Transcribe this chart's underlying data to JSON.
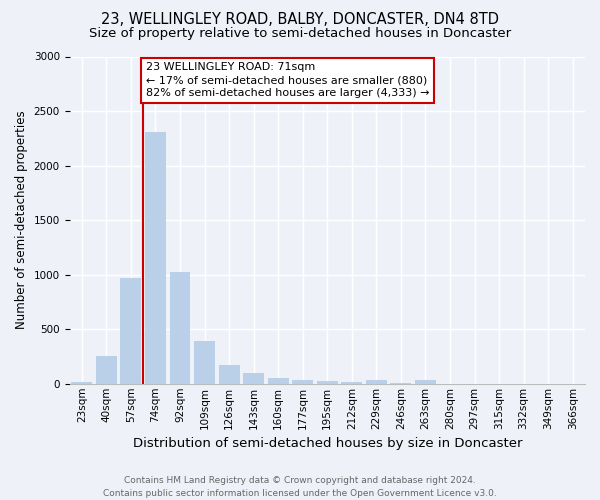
{
  "title": "23, WELLINGLEY ROAD, BALBY, DONCASTER, DN4 8TD",
  "subtitle": "Size of property relative to semi-detached houses in Doncaster",
  "xlabel": "Distribution of semi-detached houses by size in Doncaster",
  "ylabel": "Number of semi-detached properties",
  "categories": [
    "23sqm",
    "40sqm",
    "57sqm",
    "74sqm",
    "92sqm",
    "109sqm",
    "126sqm",
    "143sqm",
    "160sqm",
    "177sqm",
    "195sqm",
    "212sqm",
    "229sqm",
    "246sqm",
    "263sqm",
    "280sqm",
    "297sqm",
    "315sqm",
    "332sqm",
    "349sqm",
    "366sqm"
  ],
  "values": [
    15,
    250,
    970,
    2310,
    1020,
    390,
    175,
    100,
    55,
    35,
    25,
    15,
    30,
    8,
    35,
    0,
    0,
    0,
    0,
    0,
    0
  ],
  "bar_color": "#bad0e8",
  "vline_color": "#cc0000",
  "background_color": "#eef2f8",
  "grid_color": "#ffffff",
  "footer": "Contains HM Land Registry data © Crown copyright and database right 2024.\nContains public sector information licensed under the Open Government Licence v3.0.",
  "ylim": [
    0,
    3000
  ],
  "property_label": "23 WELLINGLEY ROAD: 71sqm",
  "annotation_line1": "← 17% of semi-detached houses are smaller (880)",
  "annotation_line2": "82% of semi-detached houses are larger (4,333) →",
  "vline_bar_index": 2.5,
  "title_fontsize": 10.5,
  "subtitle_fontsize": 9.5,
  "xlabel_fontsize": 9.5,
  "ylabel_fontsize": 8.5,
  "tick_fontsize": 7.5,
  "footer_fontsize": 6.5,
  "annotation_fontsize": 8.0
}
